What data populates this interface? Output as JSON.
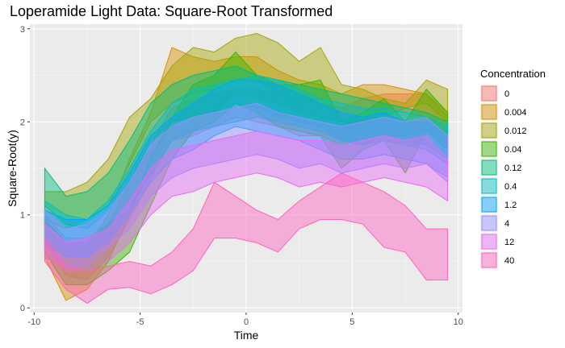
{
  "chart_data": {
    "type": "area",
    "title": "Loperamide Light Data: Square-Root Transformed",
    "xlabel": "Time",
    "ylabel": "Square-Root(y)",
    "xlim": [
      -10.2,
      10.2
    ],
    "ylim": [
      -0.05,
      3.05
    ],
    "xticks": [
      -10,
      -5,
      0,
      5,
      10
    ],
    "yticks": [
      0,
      1,
      2,
      3
    ],
    "grid": true,
    "legend": {
      "title": "Concentration",
      "position": "right"
    },
    "x": [
      -9.5,
      -8.5,
      -7.5,
      -6.5,
      -5.5,
      -4.5,
      -3.5,
      -2.5,
      -1.5,
      -0.5,
      0.5,
      1.5,
      2.5,
      3.5,
      4.5,
      5.5,
      6.5,
      7.5,
      8.5,
      9.5
    ],
    "series": [
      {
        "name": "0",
        "color": "#F8766D",
        "lower": [
          0.75,
          0.35,
          0.3,
          0.55,
          0.95,
          1.4,
          1.8,
          1.85,
          1.95,
          2.05,
          2.0,
          1.95,
          1.85,
          1.85,
          1.75,
          1.8,
          1.85,
          1.85,
          1.9,
          1.75
        ],
        "upper": [
          1.0,
          0.75,
          0.75,
          0.9,
          1.35,
          1.75,
          2.15,
          2.25,
          2.3,
          2.35,
          2.35,
          2.3,
          2.25,
          2.2,
          2.15,
          2.25,
          2.3,
          2.3,
          2.3,
          2.05
        ]
      },
      {
        "name": "0.004",
        "color": "#D89000",
        "lower": [
          0.55,
          0.08,
          0.2,
          0.5,
          1.0,
          1.6,
          2.0,
          2.05,
          2.1,
          2.3,
          2.25,
          2.2,
          2.1,
          2.05,
          2.0,
          2.0,
          2.15,
          2.1,
          2.05,
          1.85
        ],
        "upper": [
          0.95,
          0.55,
          0.65,
          1.0,
          1.6,
          2.1,
          2.8,
          2.7,
          2.65,
          2.7,
          2.7,
          2.55,
          2.45,
          2.4,
          2.3,
          2.4,
          2.4,
          2.35,
          2.3,
          2.1
        ]
      },
      {
        "name": "0.012",
        "color": "#A3A500",
        "lower": [
          0.95,
          0.85,
          0.95,
          1.1,
          1.55,
          2.0,
          2.2,
          2.3,
          2.35,
          2.45,
          2.45,
          2.3,
          2.2,
          2.25,
          2.0,
          1.95,
          2.05,
          2.15,
          2.2,
          2.0
        ],
        "upper": [
          1.25,
          1.25,
          1.35,
          1.6,
          2.05,
          2.25,
          2.6,
          2.8,
          2.75,
          2.9,
          2.95,
          2.85,
          2.65,
          2.8,
          2.4,
          2.35,
          2.25,
          2.2,
          2.45,
          2.35
        ]
      },
      {
        "name": "0.04",
        "color": "#39B600",
        "lower": [
          0.6,
          0.25,
          0.25,
          0.4,
          0.6,
          1.1,
          1.6,
          1.9,
          2.0,
          2.2,
          2.1,
          1.95,
          1.9,
          1.85,
          1.5,
          1.7,
          1.8,
          1.45,
          1.9,
          1.7
        ],
        "upper": [
          0.95,
          0.7,
          0.7,
          0.9,
          1.05,
          1.6,
          2.05,
          2.4,
          2.5,
          2.75,
          2.5,
          2.4,
          2.4,
          2.45,
          2.0,
          2.1,
          2.25,
          2.0,
          2.35,
          2.1
        ]
      },
      {
        "name": "0.12",
        "color": "#00BF7D",
        "lower": [
          1.1,
          0.9,
          0.85,
          1.05,
          1.35,
          1.8,
          2.0,
          2.05,
          2.1,
          2.2,
          2.15,
          2.05,
          2.0,
          1.95,
          1.8,
          1.75,
          1.85,
          1.8,
          1.75,
          1.6
        ],
        "upper": [
          1.5,
          1.2,
          1.25,
          1.45,
          1.8,
          2.2,
          2.4,
          2.5,
          2.55,
          2.6,
          2.5,
          2.45,
          2.4,
          2.35,
          2.3,
          2.25,
          2.2,
          2.15,
          2.1,
          2.0
        ]
      },
      {
        "name": "0.4",
        "color": "#00BFC4",
        "lower": [
          0.8,
          0.6,
          0.55,
          0.75,
          1.05,
          1.45,
          1.8,
          1.9,
          1.95,
          2.0,
          2.05,
          2.0,
          1.95,
          1.9,
          1.8,
          1.75,
          1.8,
          1.75,
          1.7,
          1.55
        ],
        "upper": [
          1.15,
          1.0,
          0.95,
          1.15,
          1.5,
          1.9,
          2.2,
          2.35,
          2.4,
          2.45,
          2.5,
          2.45,
          2.35,
          2.25,
          2.2,
          2.15,
          2.15,
          2.1,
          2.05,
          1.95
        ]
      },
      {
        "name": "1.2",
        "color": "#00A5FF",
        "lower": [
          0.7,
          0.55,
          0.55,
          0.7,
          1.0,
          1.35,
          1.6,
          1.7,
          1.85,
          1.95,
          1.9,
          1.85,
          1.8,
          1.7,
          1.6,
          1.6,
          1.65,
          1.6,
          1.55,
          1.4
        ],
        "upper": [
          1.05,
          0.95,
          0.95,
          1.1,
          1.45,
          1.85,
          2.05,
          2.2,
          2.35,
          2.45,
          2.45,
          2.4,
          2.3,
          2.2,
          2.1,
          2.05,
          2.1,
          2.0,
          2.0,
          1.85
        ]
      },
      {
        "name": "4",
        "color": "#9590FF",
        "lower": [
          0.65,
          0.45,
          0.45,
          0.65,
          0.85,
          1.2,
          1.4,
          1.5,
          1.55,
          1.6,
          1.65,
          1.6,
          1.5,
          1.55,
          1.45,
          1.5,
          1.55,
          1.5,
          1.55,
          1.35
        ],
        "upper": [
          1.05,
          0.85,
          0.9,
          1.05,
          1.35,
          1.75,
          1.95,
          2.05,
          2.1,
          2.15,
          2.2,
          2.1,
          2.05,
          2.0,
          1.95,
          2.0,
          2.05,
          2.0,
          2.05,
          1.85
        ]
      },
      {
        "name": "12",
        "color": "#E76BF3",
        "lower": [
          0.55,
          0.4,
          0.4,
          0.5,
          0.7,
          1.0,
          1.2,
          1.25,
          1.35,
          1.4,
          1.45,
          1.4,
          1.3,
          1.35,
          1.3,
          1.35,
          1.4,
          1.35,
          1.3,
          1.15
        ],
        "upper": [
          0.9,
          0.7,
          0.75,
          0.85,
          1.15,
          1.5,
          1.7,
          1.75,
          1.8,
          1.85,
          1.9,
          1.85,
          1.8,
          1.8,
          1.75,
          1.8,
          1.85,
          1.8,
          1.85,
          1.6
        ]
      },
      {
        "name": "40",
        "color": "#FF62BC",
        "lower": [
          0.5,
          0.2,
          0.05,
          0.2,
          0.22,
          0.15,
          0.25,
          0.4,
          0.75,
          0.75,
          0.7,
          0.6,
          0.85,
          0.95,
          0.95,
          0.9,
          0.65,
          0.6,
          0.3,
          0.3
        ],
        "upper": [
          0.75,
          0.45,
          0.4,
          0.45,
          0.5,
          0.45,
          0.6,
          0.85,
          1.35,
          1.2,
          1.05,
          0.95,
          1.15,
          1.3,
          1.45,
          1.35,
          1.25,
          1.1,
          0.85,
          0.85
        ]
      }
    ]
  }
}
